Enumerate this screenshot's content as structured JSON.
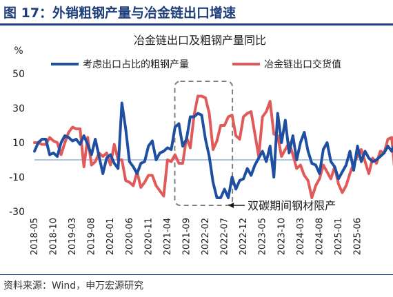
{
  "figure": {
    "title": "图 17：外销粗钢产量与冶金链出口增速",
    "source": "资料来源：Wind，申万宏源研究",
    "colors": {
      "title": "#1f3f7a"
    }
  },
  "chart_data": {
    "type": "line",
    "title": "冶金链出口及粗钢产量同比",
    "ylabel": "%",
    "xlabel": "",
    "ylim": [
      -30,
      50
    ],
    "yticks": [
      -30,
      -10,
      10,
      30,
      50
    ],
    "grid": false,
    "legend_position": "top",
    "x_tick_labels": [
      "2018-05",
      "2018-10",
      "2019-03",
      "2019-08",
      "2020-01",
      "2020-06",
      "2020-11",
      "2021-04",
      "2021-09",
      "2022-02",
      "2022-07",
      "2022-12",
      "2023-05",
      "2023-10",
      "2024-03",
      "2024-08",
      "2025-01",
      "2025-06"
    ],
    "x_start": "2018-05",
    "x_end": "2025-07",
    "reference_line": {
      "y": 0,
      "color": "#8fb3d9"
    },
    "annotation": {
      "text": "双碳期间钢材限产",
      "x_start": "2021-07",
      "x_end": "2022-08"
    },
    "series": [
      {
        "name": "考虑出口占比的粗钢产量",
        "color": "#1f4fa0",
        "values": [
          5,
          10,
          12,
          12,
          3,
          4,
          2,
          10,
          14,
          13,
          11,
          12,
          9,
          14,
          9,
          3,
          12,
          2,
          -8,
          1,
          3,
          -2,
          -5,
          33,
          18,
          -1,
          -4,
          -8,
          -2,
          -1,
          8,
          11,
          0,
          4,
          5,
          7,
          6,
          19,
          21,
          8,
          12,
          25,
          25,
          27,
          26,
          12,
          2,
          -13,
          -22,
          -22,
          -17,
          -22,
          -10,
          -17,
          -12,
          -11,
          -5,
          -9,
          -3,
          1,
          5,
          -1,
          8,
          -10,
          27,
          10,
          23,
          4,
          14,
          0,
          10,
          16,
          5,
          -2,
          -3,
          -8,
          6,
          10,
          -1,
          -4,
          -11,
          -7,
          -3,
          5,
          -6,
          8,
          -1,
          5,
          1,
          -1,
          0,
          2,
          4,
          8,
          5,
          10,
          -1,
          3,
          8,
          7,
          10,
          -1,
          -7
        ]
      },
      {
        "name": "冶金链出口交货值",
        "color": "#e05a5a",
        "values": [
          10,
          10,
          9,
          9,
          13,
          11,
          10,
          3,
          10,
          16,
          19,
          18,
          18,
          -4,
          13,
          -3,
          -1,
          4,
          2,
          4,
          -3,
          9,
          0,
          0,
          -12,
          -13,
          -15,
          -7,
          -16,
          -13,
          -9,
          -9,
          -15,
          -18,
          -21,
          0,
          -1,
          3,
          -2,
          -2,
          13,
          7,
          26,
          37,
          37,
          36,
          27,
          6,
          11,
          20,
          20,
          25,
          26,
          14,
          12,
          25,
          27,
          28,
          15,
          2,
          25,
          28,
          34,
          15,
          14,
          2,
          6,
          10,
          3,
          -5,
          -3,
          -9,
          -12,
          -22,
          -15,
          -11,
          -3,
          -7,
          -11,
          -4,
          -14,
          -19,
          -15,
          -8,
          -2,
          2,
          6,
          -1,
          -8,
          1,
          -2,
          5,
          4,
          12,
          13,
          -11,
          7,
          11,
          -7,
          -7,
          -2,
          3,
          -2
        ]
      }
    ]
  }
}
